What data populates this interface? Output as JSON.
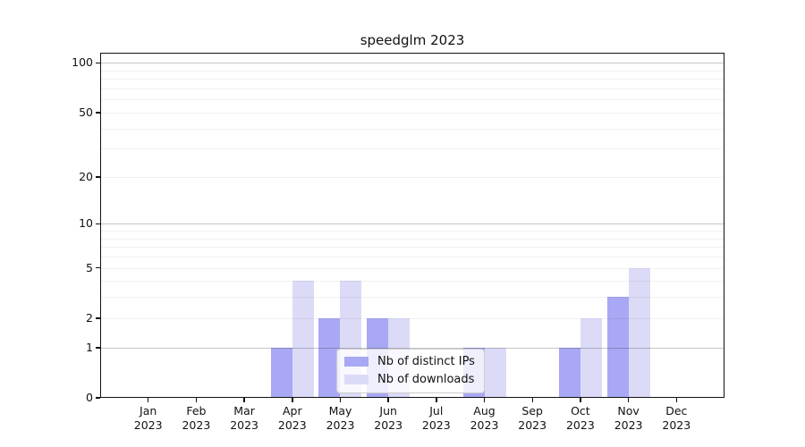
{
  "figure": {
    "background_color": "#ffffff",
    "axis_color": "#111111"
  },
  "chart_data": {
    "type": "bar",
    "title": "speedglm 2023",
    "xlabel": "",
    "ylabel": "",
    "categories": [
      "Jan",
      "Feb",
      "Mar",
      "Apr",
      "May",
      "Jun",
      "Jul",
      "Aug",
      "Sep",
      "Oct",
      "Nov",
      "Dec"
    ],
    "year_label": "2023",
    "series": [
      {
        "name": "Nb of distinct IPs",
        "color": "#a8a8f4",
        "values": [
          0,
          0,
          0,
          1,
          2,
          2,
          0,
          1,
          0,
          1,
          3,
          0
        ]
      },
      {
        "name": "Nb of downloads",
        "color": "#dbdbf8",
        "values": [
          0,
          0,
          0,
          4,
          4,
          2,
          0,
          1,
          0,
          2,
          5,
          0
        ]
      }
    ],
    "yscale": "log1p",
    "ylim": [
      0,
      115
    ],
    "yticks": [
      0,
      1,
      2,
      5,
      10,
      20,
      50,
      100
    ],
    "gridlines": {
      "major": [
        1,
        10,
        100
      ],
      "minor": [
        2,
        3,
        4,
        5,
        6,
        7,
        8,
        9,
        20,
        30,
        40,
        50,
        60,
        70,
        80,
        90
      ]
    },
    "grid": true,
    "legend_position": "lower center",
    "major_grid_color": "#c7c7c7",
    "minor_grid_color": "#f0f0f0"
  }
}
